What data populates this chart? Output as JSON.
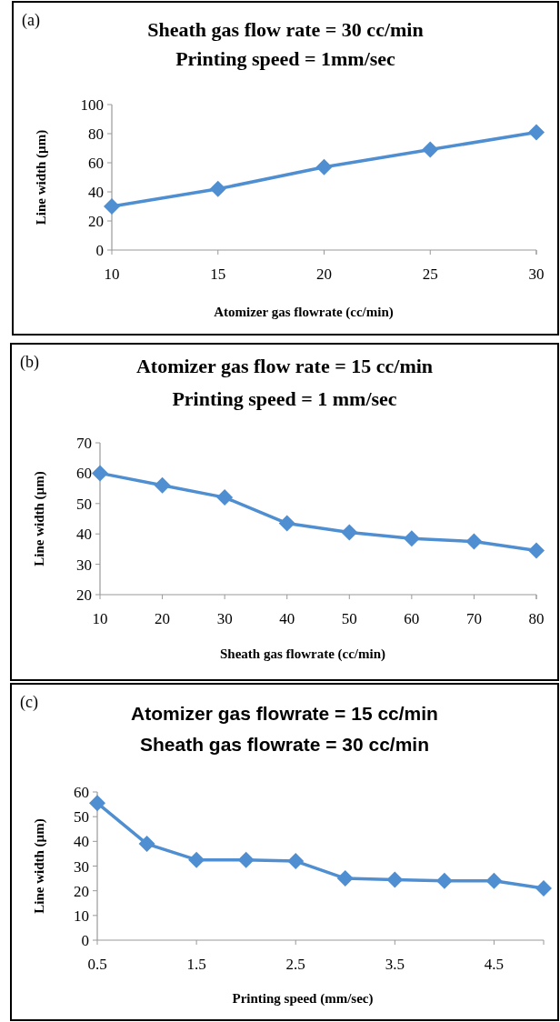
{
  "chart_data": [
    {
      "type": "line",
      "title": "Sheath gas flow rate = 30 cc/min",
      "subtitle": "Printing speed = 1mm/sec",
      "annotations": [
        "(a)"
      ],
      "xlabel": "Atomizer gas flowrate (cc/min)",
      "ylabel": "Line width (µm)",
      "x": [
        10,
        15,
        20,
        25,
        30
      ],
      "series": [
        {
          "color": "#4f8fd1",
          "values": [
            30,
            42,
            57,
            69,
            81
          ]
        }
      ],
      "xlim": [
        10,
        30
      ],
      "xticks": [
        10,
        15,
        20,
        25,
        30
      ],
      "ylim": [
        0,
        100
      ],
      "yticks": [
        0,
        20,
        40,
        60,
        80,
        100
      ],
      "grid": false,
      "marker": "diamond",
      "line_style": "solid"
    },
    {
      "type": "line",
      "title": "Atomizer gas flow rate = 15 cc/min",
      "subtitle": "Printing speed = 1 mm/sec",
      "annotations": [
        "(b)"
      ],
      "xlabel": "Sheath gas flowrate (cc/min)",
      "ylabel": "Line width (µm)",
      "x": [
        10,
        20,
        30,
        40,
        50,
        60,
        70,
        80
      ],
      "series": [
        {
          "color": "#4f8fd1",
          "values": [
            60,
            56,
            52,
            43.5,
            40.5,
            38.5,
            37.5,
            34.5
          ]
        }
      ],
      "xlim": [
        10,
        80
      ],
      "xticks": [
        10,
        20,
        30,
        40,
        50,
        60,
        70,
        80
      ],
      "ylim": [
        20,
        70
      ],
      "yticks": [
        20,
        30,
        40,
        50,
        60,
        70
      ],
      "grid": false,
      "marker": "diamond",
      "line_style": "solid"
    },
    {
      "type": "line",
      "title": "Atomizer gas flowrate = 15 cc/min",
      "subtitle": "Sheath gas flowrate = 30 cc/min",
      "annotations": [
        "(c)"
      ],
      "xlabel": "Printing speed  (mm/sec)",
      "ylabel": "Line width (µm)",
      "x": [
        0.5,
        1,
        1.5,
        2,
        2.5,
        3,
        3.5,
        4,
        4.5,
        5
      ],
      "series": [
        {
          "color": "#4f8fd1",
          "values": [
            55.5,
            39,
            32.5,
            32.5,
            32,
            25,
            24.5,
            24,
            24,
            21
          ]
        }
      ],
      "xlim": [
        0.5,
        5
      ],
      "xticks": [
        0.5,
        1.5,
        2.5,
        3.5,
        4.5
      ],
      "ylim": [
        0,
        60
      ],
      "yticks": [
        0,
        10,
        20,
        30,
        40,
        50,
        60
      ],
      "grid": false,
      "marker": "diamond",
      "line_style": "solid"
    }
  ]
}
